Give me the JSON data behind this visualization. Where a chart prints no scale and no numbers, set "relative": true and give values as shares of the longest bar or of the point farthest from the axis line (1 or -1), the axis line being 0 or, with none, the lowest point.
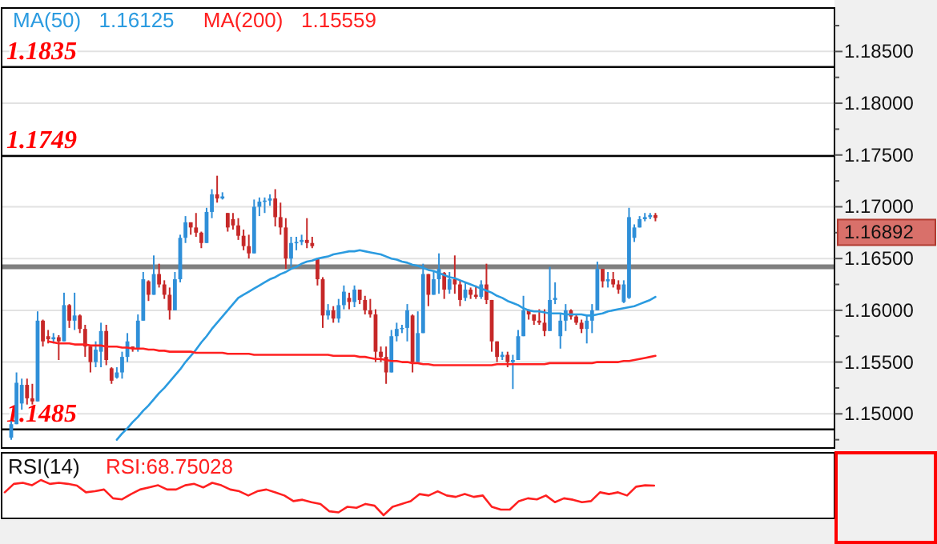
{
  "chart_data": [
    {
      "type": "candlestick",
      "legend": "top left",
      "grid": "y",
      "line_style": "solid",
      "categories": [
        null,
        null,
        null,
        null,
        null,
        null,
        null,
        null,
        null,
        null,
        null,
        null,
        null,
        null,
        null,
        null,
        null,
        null,
        null,
        null,
        null,
        null,
        null,
        null,
        null,
        null,
        null,
        null,
        null,
        null,
        null,
        null,
        null,
        null,
        null,
        null,
        null,
        null,
        null,
        null,
        null,
        null,
        null,
        null,
        null,
        null,
        null,
        null,
        null,
        null,
        null,
        null,
        null,
        null,
        null,
        null,
        null,
        null,
        null,
        null,
        null,
        null,
        null,
        null,
        null,
        null,
        null,
        null,
        null,
        null,
        null,
        null,
        null,
        null,
        null,
        null,
        null,
        null,
        null,
        null,
        null,
        null,
        null,
        null,
        null,
        null,
        null,
        null,
        null,
        null,
        null,
        null,
        null,
        null,
        null,
        null,
        null,
        null,
        null,
        null,
        null,
        null,
        null,
        null,
        null,
        null,
        null,
        null,
        null,
        null,
        null,
        null,
        null,
        null,
        null,
        null,
        null,
        null,
        null,
        null,
        null,
        null,
        null,
        null,
        null,
        null,
        null,
        null,
        null,
        null,
        null,
        null,
        null,
        null,
        null,
        null,
        null,
        null,
        null,
        null,
        null,
        null,
        null,
        null,
        null,
        null,
        null,
        null,
        null,
        null,
        null,
        null,
        null,
        null,
        null,
        null
      ],
      "ylim": [
        1.1467,
        1.1892
      ],
      "yticks": [
        {
          "value": 1.1475,
          "label": null
        },
        {
          "value": 1.15,
          "label": "1.15000"
        },
        {
          "value": 1.1525,
          "label": null
        },
        {
          "value": 1.155,
          "label": "1.15500"
        },
        {
          "value": 1.1575,
          "label": null
        },
        {
          "value": 1.16,
          "label": "1.16000"
        },
        {
          "value": 1.1625,
          "label": null
        },
        {
          "value": 1.165,
          "label": "1.16500"
        },
        {
          "value": 1.1675,
          "label": null
        },
        {
          "value": 1.17,
          "label": "1.17000"
        },
        {
          "value": 1.1725,
          "label": null
        },
        {
          "value": 1.175,
          "label": "1.17500"
        },
        {
          "value": 1.1775,
          "label": null
        },
        {
          "value": 1.18,
          "label": "1.18000"
        },
        {
          "value": 1.1825,
          "label": null
        },
        {
          "value": 1.185,
          "label": "1.18500"
        },
        {
          "value": 1.1875,
          "label": null
        }
      ],
      "ref_lines": [
        {
          "axis": "y",
          "value": 1.1835,
          "label": "1.1835",
          "color": "#000000"
        },
        {
          "axis": "y",
          "value": 1.1749,
          "label": "1.1749",
          "color": "#000000"
        },
        {
          "axis": "y",
          "value": 1.1485,
          "label": "1.1485",
          "color": "#000000"
        },
        {
          "axis": "y",
          "value": 1.1642,
          "color": "#808080"
        }
      ],
      "annotations": [
        "1.16125",
        "1.15559",
        "1.16892"
      ],
      "ohlc": [
        [
          1.1477,
          1.1493,
          1.1475,
          1.149
        ],
        [
          1.149,
          1.154,
          1.149,
          1.153
        ],
        [
          1.151,
          1.1534,
          1.1504,
          1.1528
        ],
        [
          1.1528,
          1.1534,
          1.1509,
          1.1515
        ],
        [
          1.1515,
          1.1529,
          1.1509,
          1.1512
        ],
        [
          1.1512,
          1.1599,
          1.1512,
          1.159
        ],
        [
          1.159,
          1.1591,
          1.1565,
          1.157
        ],
        [
          1.1575,
          1.1581,
          1.1568,
          1.1572
        ],
        [
          1.1572,
          1.1578,
          1.1568,
          1.1574
        ],
        [
          1.1574,
          1.1576,
          1.1552,
          1.157
        ],
        [
          1.157,
          1.1617,
          1.157,
          1.1605
        ],
        [
          1.1605,
          1.1606,
          1.1583,
          1.159
        ],
        [
          1.159,
          1.1617,
          1.1581,
          1.1595
        ],
        [
          1.1595,
          1.1596,
          1.1578,
          1.1582
        ],
        [
          1.1582,
          1.1586,
          1.1555,
          1.1565
        ],
        [
          1.1565,
          1.1565,
          1.154,
          1.155
        ],
        [
          1.155,
          1.157,
          1.1545,
          1.1562
        ],
        [
          1.156,
          1.1588,
          1.1545,
          1.158
        ],
        [
          1.158,
          1.1586,
          1.1547,
          1.1552
        ],
        [
          1.1544,
          1.1545,
          1.1529,
          1.1532
        ],
        [
          1.1535,
          1.1545,
          1.1534,
          1.154
        ],
        [
          1.154,
          1.156,
          1.1534,
          1.1555
        ],
        [
          1.1555,
          1.1578,
          1.155,
          1.157
        ],
        [
          1.1565,
          1.1565,
          1.156,
          1.1563
        ],
        [
          1.1563,
          1.1596,
          1.156,
          1.159
        ],
        [
          1.159,
          1.1637,
          1.159,
          1.163
        ],
        [
          1.1628,
          1.1629,
          1.1609,
          1.1615
        ],
        [
          1.1615,
          1.1653,
          1.1615,
          1.1635
        ],
        [
          1.1635,
          1.1645,
          1.1622,
          1.1625
        ],
        [
          1.1625,
          1.1629,
          1.1611,
          1.1615
        ],
        [
          1.1615,
          1.1622,
          1.1591,
          1.16
        ],
        [
          1.16,
          1.1637,
          1.16,
          1.163
        ],
        [
          1.163,
          1.1673,
          1.1627,
          1.167
        ],
        [
          1.167,
          1.1691,
          1.1665,
          1.1685
        ],
        [
          1.1685,
          1.1685,
          1.1673,
          1.168
        ],
        [
          1.168,
          1.1694,
          1.1671,
          1.1675
        ],
        [
          1.1675,
          1.1676,
          1.166,
          1.1665
        ],
        [
          1.1665,
          1.1699,
          1.1665,
          1.1695
        ],
        [
          1.1695,
          1.1717,
          1.1689,
          1.1712
        ],
        [
          1.1712,
          1.173,
          1.1704,
          1.1708
        ],
        [
          1.1708,
          1.1714,
          1.1707,
          1.171
        ],
        [
          1.1694,
          1.1694,
          1.1676,
          1.168
        ],
        [
          1.1688,
          1.1694,
          1.1678,
          1.1682
        ],
        [
          1.1682,
          1.1689,
          1.1668,
          1.1672
        ],
        [
          1.1672,
          1.1678,
          1.1658,
          1.1662
        ],
        [
          1.1662,
          1.1673,
          1.165,
          1.1655
        ],
        [
          1.1655,
          1.1707,
          1.1655,
          1.17
        ],
        [
          1.17,
          1.1709,
          1.1691,
          1.1705
        ],
        [
          1.1705,
          1.1709,
          1.1694,
          1.1706
        ],
        [
          1.1706,
          1.1712,
          1.1701,
          1.1708
        ],
        [
          1.1708,
          1.1717,
          1.1681,
          1.169
        ],
        [
          1.169,
          1.1704,
          1.1673,
          1.168
        ],
        [
          1.168,
          1.1689,
          1.164,
          1.165
        ],
        [
          1.165,
          1.1671,
          1.1642,
          1.1665
        ],
        [
          1.1665,
          1.1671,
          1.1658,
          1.1666
        ],
        [
          1.1666,
          1.1673,
          1.1663,
          1.1668
        ],
        [
          1.1668,
          1.1689,
          1.166,
          1.1665
        ],
        [
          1.1665,
          1.1671,
          1.166,
          1.1662
        ],
        [
          1.165,
          1.165,
          1.1624,
          1.163
        ],
        [
          1.163,
          1.1632,
          1.1583,
          1.1595
        ],
        [
          1.1595,
          1.1606,
          1.1591,
          1.16
        ],
        [
          1.16,
          1.1604,
          1.1588,
          1.1592
        ],
        [
          1.1592,
          1.1611,
          1.1588,
          1.1605
        ],
        [
          1.1605,
          1.1624,
          1.1601,
          1.1618
        ],
        [
          1.1612,
          1.1617,
          1.1601,
          1.1608
        ],
        [
          1.1608,
          1.1624,
          1.1603,
          1.162
        ],
        [
          1.162,
          1.162,
          1.1606,
          1.161
        ],
        [
          1.161,
          1.1614,
          1.1596,
          1.16
        ],
        [
          1.16,
          1.1611,
          1.1593,
          1.1596
        ],
        [
          1.1596,
          1.1601,
          1.155,
          1.156
        ],
        [
          1.156,
          1.1565,
          1.155,
          1.1555
        ],
        [
          1.1555,
          1.1565,
          1.1529,
          1.154
        ],
        [
          1.154,
          1.1581,
          1.154,
          1.1575
        ],
        [
          1.1575,
          1.1588,
          1.157,
          1.1582
        ],
        [
          1.1582,
          1.1586,
          1.1578,
          1.1583
        ],
        [
          1.1583,
          1.1606,
          1.157,
          1.16
        ],
        [
          1.1595,
          1.1596,
          1.154,
          1.155
        ],
        [
          1.155,
          1.1599,
          1.155,
          1.1578
        ],
        [
          1.1578,
          1.1645,
          1.1578,
          1.1635
        ],
        [
          1.1635,
          1.1635,
          1.1604,
          1.1615
        ],
        [
          1.1615,
          1.1637,
          1.1615,
          1.163
        ],
        [
          1.163,
          1.1655,
          1.1616,
          1.164
        ],
        [
          1.1636,
          1.1637,
          1.1611,
          1.162
        ],
        [
          1.162,
          1.1637,
          1.1616,
          1.163
        ],
        [
          1.163,
          1.1653,
          1.1616,
          1.1625
        ],
        [
          1.1625,
          1.1629,
          1.1604,
          1.161
        ],
        [
          1.1612,
          1.1627,
          1.1609,
          1.162
        ],
        [
          1.162,
          1.1622,
          1.1611,
          1.1615
        ],
        [
          1.1615,
          1.1624,
          1.1611,
          1.1613
        ],
        [
          1.1613,
          1.1629,
          1.1611,
          1.1625
        ],
        [
          1.1625,
          1.1645,
          1.1606,
          1.161
        ],
        [
          1.161,
          1.161,
          1.156,
          1.157
        ],
        [
          1.157,
          1.157,
          1.155,
          1.1555
        ],
        [
          1.1555,
          1.156,
          1.1552,
          1.1557
        ],
        [
          1.1557,
          1.156,
          1.1545,
          1.155
        ],
        [
          1.155,
          1.1557,
          1.1524,
          1.1552
        ],
        [
          1.1552,
          1.1581,
          1.1552,
          1.1575
        ],
        [
          1.1575,
          1.1614,
          1.1575,
          1.16
        ],
        [
          1.16,
          1.1601,
          1.1591,
          1.1596
        ],
        [
          1.1596,
          1.1596,
          1.1586,
          1.159
        ],
        [
          1.159,
          1.1601,
          1.1586,
          1.1588
        ],
        [
          1.1588,
          1.1601,
          1.1575,
          1.158
        ],
        [
          1.158,
          1.1642,
          1.158,
          1.161
        ],
        [
          1.161,
          1.1627,
          1.1606,
          1.1612
        ],
        [
          1.1575,
          1.1596,
          1.1563,
          1.159
        ],
        [
          1.159,
          1.1606,
          1.158,
          1.16
        ],
        [
          1.16,
          1.1601,
          1.1591,
          1.1594
        ],
        [
          1.1594,
          1.1596,
          1.1586,
          1.1588
        ],
        [
          1.1588,
          1.1591,
          1.1578,
          1.1582
        ],
        [
          1.1582,
          1.1596,
          1.1568,
          1.159
        ],
        [
          1.159,
          1.1606,
          1.1578,
          1.16
        ],
        [
          1.16,
          1.1647,
          1.16,
          1.164
        ],
        [
          1.164,
          1.164,
          1.1622,
          1.1628
        ],
        [
          1.1628,
          1.1637,
          1.1622,
          1.163
        ],
        [
          1.163,
          1.1637,
          1.1622,
          1.1625
        ],
        [
          1.1625,
          1.1629,
          1.1616,
          1.162
        ],
        [
          1.1608,
          1.1629,
          1.1607,
          1.1625
        ],
        [
          1.1612,
          1.1699,
          1.1611,
          1.169
        ],
        [
          1.167,
          1.1683,
          1.1666,
          1.168
        ],
        [
          1.168,
          1.1691,
          1.168,
          1.1688
        ],
        [
          1.1688,
          1.1694,
          1.1686,
          1.169
        ],
        [
          1.169,
          1.1694,
          1.1688,
          1.1692
        ],
        [
          1.1692,
          1.1694,
          1.1686,
          1.16892
        ],
        null,
        null,
        null,
        null,
        null,
        null,
        null,
        null,
        null,
        null,
        null,
        null,
        null,
        null,
        null,
        null,
        null,
        null,
        null,
        null,
        null,
        null,
        null,
        null,
        null,
        null,
        null,
        null,
        null,
        null,
        null,
        null,
        null
      ],
      "series": [
        {
          "name": "MA(50)",
          "type": "line",
          "color": "#2b9be0",
          "values": [
            null,
            null,
            null,
            null,
            null,
            null,
            null,
            null,
            null,
            null,
            null,
            null,
            null,
            null,
            null,
            null,
            null,
            null,
            null,
            null,
            1.1475,
            1.1481,
            1.1486,
            1.1492,
            1.1497,
            1.1503,
            1.1508,
            1.1514,
            1.152,
            1.1525,
            1.1531,
            1.1537,
            1.1543,
            1.155,
            1.1556,
            1.1562,
            1.1569,
            1.1575,
            1.1582,
            1.1588,
            1.1594,
            1.16,
            1.1606,
            1.1612,
            1.1615,
            1.1618,
            1.1621,
            1.1624,
            1.1627,
            1.163,
            1.1632,
            1.1635,
            1.1637,
            1.164,
            1.1642,
            1.1645,
            1.1647,
            1.1648,
            1.165,
            1.1651,
            1.1652,
            1.1654,
            1.1655,
            1.1656,
            1.1657,
            1.1657,
            1.1658,
            1.1657,
            1.1656,
            1.1655,
            1.1654,
            1.1652,
            1.165,
            1.1649,
            1.1647,
            1.1646,
            1.1644,
            1.1643,
            1.1641,
            1.1639,
            1.1638,
            1.1636,
            1.1634,
            1.1632,
            1.1631,
            1.1629,
            1.1627,
            1.1625,
            1.1623,
            1.1621,
            1.1619,
            1.1617,
            1.1614,
            1.1612,
            1.1609,
            1.1607,
            1.1605,
            1.1602,
            1.16,
            1.1599,
            1.1599,
            1.1598,
            1.1597,
            1.1597,
            1.1597,
            1.1596,
            1.1596,
            1.1596,
            1.1596,
            1.1595,
            1.1595,
            1.1596,
            1.1597,
            1.1599,
            1.16,
            1.1601,
            1.1602,
            1.1603,
            1.1604,
            1.1606,
            1.1608,
            1.161,
            1.1613,
            null,
            null,
            null,
            null,
            null,
            null,
            null,
            null,
            null,
            null,
            null,
            null,
            null,
            null,
            null,
            null,
            null,
            null,
            null,
            null,
            null,
            null,
            null,
            null,
            null,
            null,
            null,
            null,
            null,
            null,
            null,
            null,
            null
          ]
        },
        {
          "name": "MA(200)",
          "type": "line",
          "color": "#ff2020",
          "values": [
            null,
            null,
            null,
            null,
            null,
            null,
            null,
            1.157,
            1.1569,
            1.1568,
            1.1568,
            1.1568,
            1.1567,
            1.1567,
            1.1567,
            1.1566,
            1.1566,
            1.1566,
            1.1565,
            1.1565,
            1.1565,
            1.1564,
            1.1564,
            1.1563,
            1.1563,
            1.1563,
            1.1562,
            1.1562,
            1.1561,
            1.1561,
            1.156,
            1.156,
            1.156,
            1.156,
            1.156,
            1.1559,
            1.1559,
            1.1559,
            1.1559,
            1.1559,
            1.1559,
            1.1558,
            1.1558,
            1.1558,
            1.1558,
            1.1558,
            1.1557,
            1.1557,
            1.1557,
            1.1557,
            1.1557,
            1.1557,
            1.1557,
            1.1557,
            1.1557,
            1.1557,
            1.1557,
            1.1557,
            1.1557,
            1.1557,
            1.1557,
            1.1556,
            1.1556,
            1.1556,
            1.1556,
            1.1556,
            1.1555,
            1.1555,
            1.1554,
            1.1553,
            1.1553,
            1.1552,
            1.1551,
            1.1551,
            1.155,
            1.155,
            1.1549,
            1.1549,
            1.1548,
            1.1548,
            1.1547,
            1.1547,
            1.1547,
            1.1547,
            1.1547,
            1.1547,
            1.1547,
            1.1547,
            1.1547,
            1.1547,
            1.1547,
            1.1547,
            1.1548,
            1.1548,
            1.1548,
            1.1548,
            1.1548,
            1.1548,
            1.1548,
            1.1548,
            1.1548,
            1.1548,
            1.1549,
            1.1549,
            1.1549,
            1.1549,
            1.1549,
            1.1549,
            1.1549,
            1.1549,
            1.1549,
            1.155,
            1.155,
            1.155,
            1.155,
            1.155,
            1.1551,
            1.1551,
            1.1552,
            1.1553,
            1.1554,
            1.1555,
            1.1556,
            null,
            null,
            null,
            null,
            null,
            null,
            null,
            null,
            null,
            null,
            null,
            null,
            null,
            null,
            null,
            null,
            null,
            null,
            null,
            null,
            null,
            null,
            null,
            null,
            null,
            null,
            null,
            null,
            null,
            null,
            null,
            null,
            null
          ]
        }
      ]
    },
    {
      "type": "line",
      "title": "RSI(14)",
      "relative": true,
      "line_style": "solid",
      "annotations": [
        "RSI:68.75028"
      ],
      "categories": [
        null,
        null,
        null,
        null,
        null,
        null,
        null,
        null,
        null,
        null,
        null,
        null,
        null,
        null,
        null,
        null,
        null,
        null,
        null,
        null,
        null,
        null,
        null,
        null,
        null,
        null,
        null,
        null,
        null,
        null,
        null,
        null,
        null,
        null,
        null,
        null,
        null,
        null,
        null,
        null,
        null,
        null,
        null,
        null,
        null,
        null,
        null,
        null,
        null,
        null,
        null,
        null,
        null,
        null,
        null,
        null,
        null,
        null,
        null,
        null,
        null,
        null,
        null,
        null,
        null,
        null,
        null,
        null,
        null,
        null,
        null,
        null,
        null,
        null,
        null,
        null,
        null,
        null,
        null,
        null,
        null,
        null,
        null,
        null,
        null,
        null,
        null,
        null,
        null,
        null,
        null,
        null,
        null
      ],
      "series": [
        {
          "color": "#ff2020",
          "values": [
            0.65,
            0.89,
            0.92,
            0.85,
            1.0,
            0.89,
            0.92,
            0.89,
            0.84,
            0.65,
            0.68,
            0.73,
            0.48,
            0.45,
            0.6,
            0.73,
            0.79,
            0.85,
            0.73,
            0.73,
            0.85,
            0.89,
            0.79,
            0.92,
            0.85,
            0.73,
            0.68,
            0.56,
            0.68,
            0.73,
            0.65,
            0.56,
            0.4,
            0.44,
            0.37,
            0.32,
            0.11,
            0.08,
            0.24,
            0.21,
            0.32,
            0.27,
            0.0,
            0.24,
            0.32,
            0.4,
            0.6,
            0.56,
            0.68,
            0.56,
            0.52,
            0.6,
            0.52,
            0.56,
            0.24,
            0.16,
            0.16,
            0.4,
            0.48,
            0.45,
            0.56,
            0.37,
            0.48,
            0.44,
            0.37,
            0.4,
            0.65,
            0.6,
            0.65,
            0.56,
            0.81,
            0.85,
            0.84,
            null,
            null,
            null,
            null,
            null,
            null,
            null,
            null,
            null,
            null,
            null,
            null,
            null,
            null,
            null,
            null,
            null,
            null,
            null,
            null
          ]
        }
      ]
    }
  ]
}
